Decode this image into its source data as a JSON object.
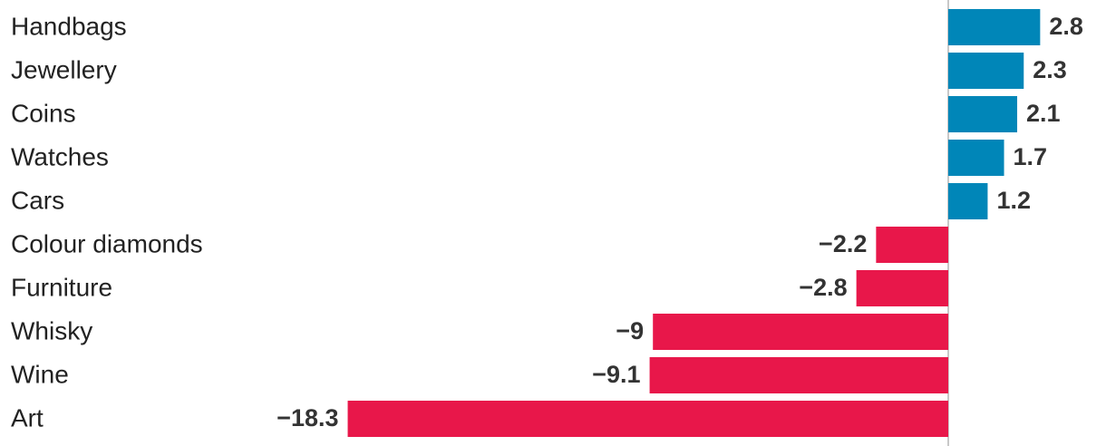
{
  "chart_data": {
    "type": "hbar",
    "categories": [
      "Handbags",
      "Jewellery",
      "Coins",
      "Watches",
      "Cars",
      "Colour diamonds",
      "Furniture",
      "Whisky",
      "Wine",
      "Art"
    ],
    "values": [
      2.8,
      2.3,
      2.1,
      1.7,
      1.2,
      -2.2,
      -2.8,
      -9,
      -9.1,
      -18.3
    ],
    "value_labels": [
      "2.8",
      "2.3",
      "2.1",
      "1.7",
      "1.2",
      "−2.2",
      "−2.8",
      "−9",
      "−9.1",
      "−18.3"
    ],
    "positive_color": "#0086b8",
    "negative_color": "#e8174a"
  }
}
